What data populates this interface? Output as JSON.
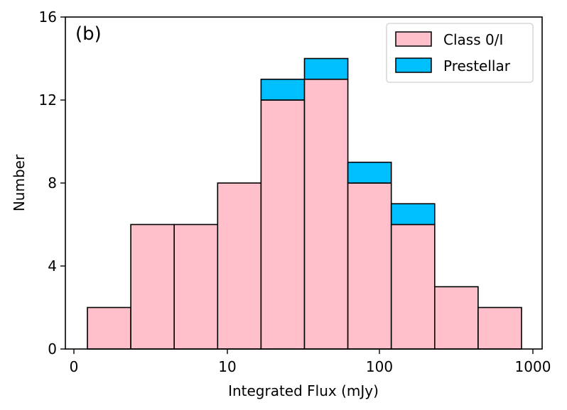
{
  "chart_data": {
    "type": "bar",
    "subtype": "stacked-histogram",
    "panel_label": "(b)",
    "xlabel": "Integrated Flux (mJy)",
    "ylabel": "Number",
    "xscale": "log",
    "xticks": [
      "0",
      "10",
      "100",
      "1000"
    ],
    "yticks": [
      "0",
      "4",
      "8",
      "12",
      "16"
    ],
    "ylim": [
      0,
      16
    ],
    "grid": false,
    "legend_position": "top-right",
    "bins": [
      {
        "class01": 2,
        "prestellar": 0
      },
      {
        "class01": 6,
        "prestellar": 0
      },
      {
        "class01": 6,
        "prestellar": 0
      },
      {
        "class01": 8,
        "prestellar": 0
      },
      {
        "class01": 12,
        "prestellar": 1
      },
      {
        "class01": 13,
        "prestellar": 1
      },
      {
        "class01": 8,
        "prestellar": 1
      },
      {
        "class01": 6,
        "prestellar": 1
      },
      {
        "class01": 3,
        "prestellar": 0
      },
      {
        "class01": 2,
        "prestellar": 0
      }
    ],
    "series": [
      {
        "name": "Class 0/I",
        "color": "#ffc0cb"
      },
      {
        "name": "Prestellar",
        "color": "#00bfff"
      }
    ]
  }
}
